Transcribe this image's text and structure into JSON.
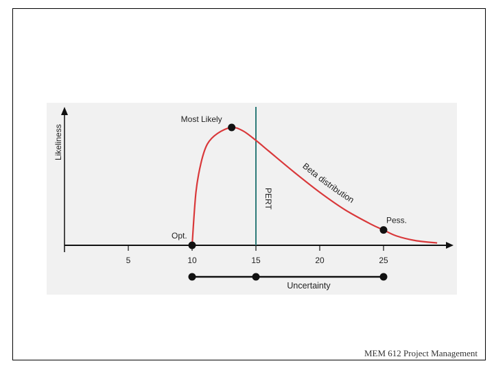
{
  "footer": {
    "course": "MEM 612 Project Management"
  },
  "chart_data": {
    "type": "line",
    "ylabel": "Likeliness",
    "xlim": [
      0,
      29
    ],
    "x_ticks": [
      5,
      10,
      15,
      20,
      25
    ],
    "series": [
      {
        "name": "Beta distribution",
        "color": "#d9383a",
        "x": [
          10,
          10.3,
          10.7,
          11.2,
          12.0,
          13.1,
          14.0,
          15.0,
          16.0,
          18.0,
          20.0,
          22.0,
          24.0,
          25.0,
          26.0,
          27.5,
          29.2
        ],
        "y": [
          0,
          0.45,
          0.7,
          0.86,
          0.95,
          1.0,
          0.97,
          0.89,
          0.8,
          0.62,
          0.45,
          0.3,
          0.18,
          0.13,
          0.08,
          0.04,
          0.02
        ]
      }
    ],
    "points": [
      {
        "label": "Opt.",
        "x": 10,
        "y": 0
      },
      {
        "label": "Most Likely",
        "x": 13.1,
        "y": 1.0
      },
      {
        "label": "Pess.",
        "x": 25,
        "y": 0.13
      }
    ],
    "pert_line": {
      "label": "PERT",
      "x": 15,
      "color": "#2c7a78"
    },
    "uncertainty": {
      "label": "Uncertainty",
      "from": 10,
      "to": 25,
      "marker": 15
    },
    "annotation": "Beta distribution",
    "colors": {
      "curve": "#d9383a",
      "pert": "#2c7a78",
      "axis": "#111111",
      "panel": "#f1f1f1"
    }
  }
}
